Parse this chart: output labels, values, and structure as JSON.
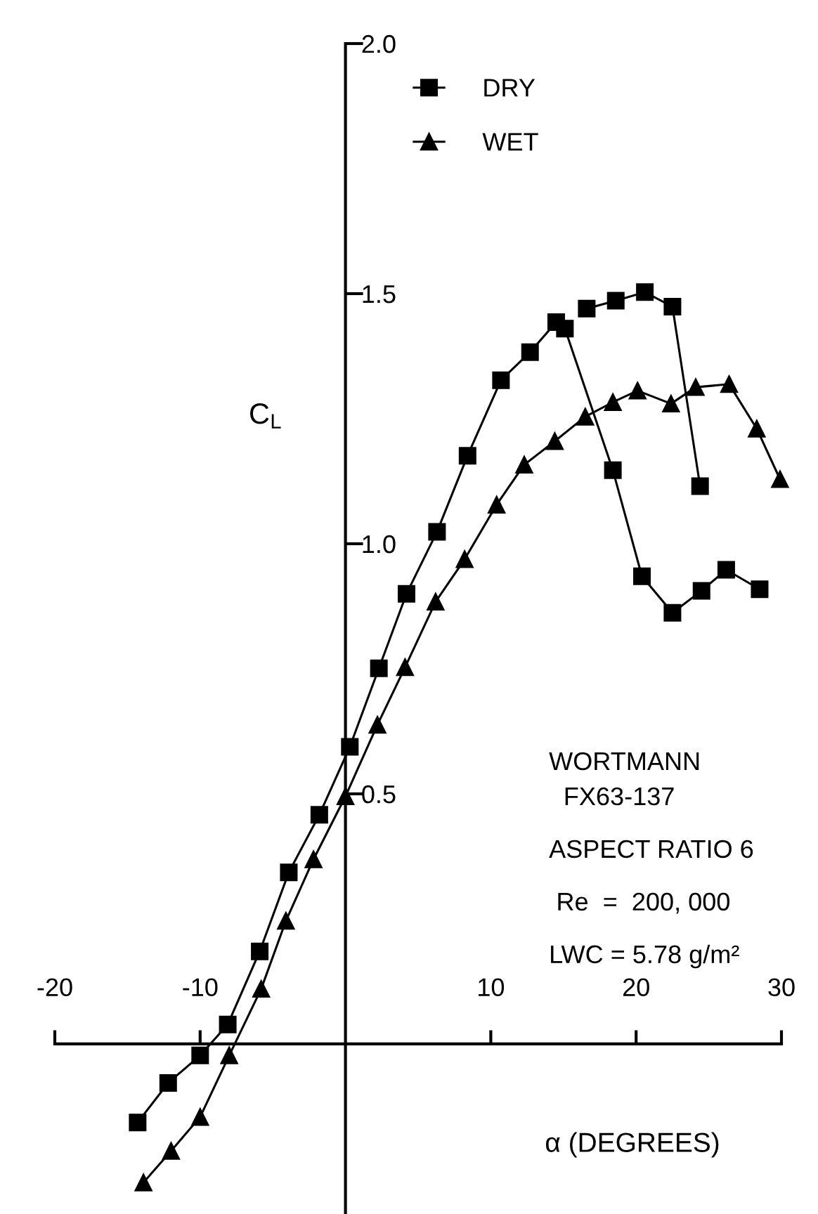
{
  "chart_data": {
    "type": "line",
    "xlabel": "α (DEGREES)",
    "ylabel": "C$_{L}$",
    "xlim": [
      -20,
      30
    ],
    "ylim": [
      -0.34,
      2.0
    ],
    "xticks": [
      -20,
      -10,
      10,
      20,
      30
    ],
    "yticks": [
      0.5,
      {
        "value": 1.0,
        "label": "1.0"
      },
      1.5,
      {
        "value": 2.0,
        "label": "2.0"
      }
    ],
    "grid": false,
    "legend": "top",
    "series": [
      {
        "name": "DRY",
        "color": "#000000",
        "marker": "square",
        "x": [
          -14.3,
          -12.2,
          -10.0,
          -8.1,
          -5.9,
          -3.9,
          -1.8,
          0.3,
          2.3,
          4.2,
          6.3,
          8.4,
          10.7,
          12.7,
          14.5,
          15.1,
          18.4,
          20.4,
          22.5,
          24.5,
          26.2,
          28.5
        ],
        "values": [
          -0.157,
          -0.078,
          -0.023,
          0.039,
          0.185,
          0.343,
          0.458,
          0.594,
          0.751,
          0.9,
          1.024,
          1.176,
          1.327,
          1.383,
          1.443,
          1.43,
          1.147,
          0.935,
          0.862,
          0.906,
          0.948,
          0.909
        ]
      },
      {
        "color": "#000000",
        "marker": "square",
        "x": [
          16.6,
          18.6,
          20.6,
          22.5,
          24.4
        ],
        "values": [
          1.47,
          1.486,
          1.503,
          1.474,
          1.115
        ]
      },
      {
        "name": "WET",
        "color": "#000000",
        "marker": "triangle",
        "x": [
          -13.9,
          -12.0,
          -10.0,
          -8.0,
          -5.8,
          -4.1,
          -2.2,
          0.0,
          2.2,
          4.1,
          6.2,
          8.2,
          10.4,
          12.3,
          14.4,
          16.5,
          18.4,
          20.1,
          22.4,
          24.1,
          26.4,
          28.3,
          29.9
        ],
        "values": [
          -0.277,
          -0.214,
          -0.146,
          -0.023,
          0.11,
          0.246,
          0.369,
          0.495,
          0.638,
          0.753,
          0.884,
          0.969,
          1.078,
          1.158,
          1.205,
          1.254,
          1.283,
          1.306,
          1.28,
          1.313,
          1.319,
          1.23,
          1.129
        ]
      }
    ],
    "annotations": [
      "WORTMANN",
      "FX63-137",
      "ASPECT RATIO 6",
      "Re  =  200, 000",
      "LWC = 5.78 g/m²"
    ]
  }
}
